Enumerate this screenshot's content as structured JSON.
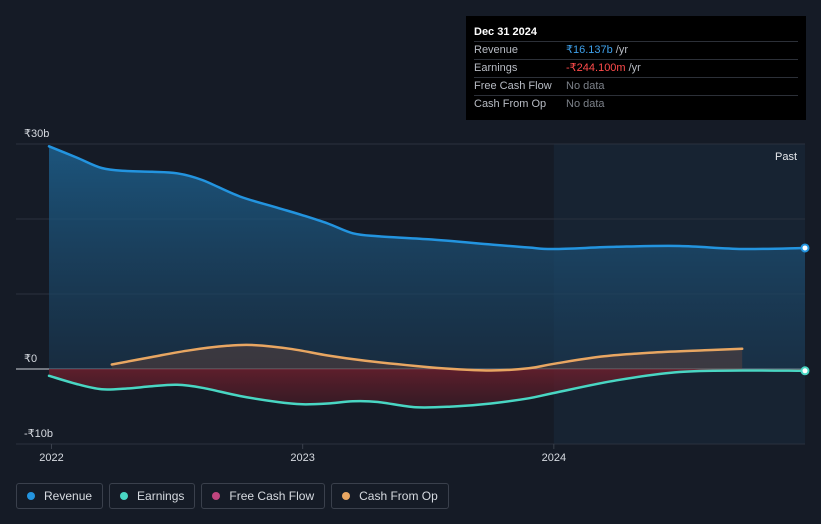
{
  "tooltip": {
    "date": "Dec 31 2024",
    "rows": [
      {
        "label": "Revenue",
        "value": "₹16.137b",
        "unit": "/yr",
        "color": "#3ea0ea"
      },
      {
        "label": "Earnings",
        "value": "-₹244.100m",
        "unit": "/yr",
        "color": "#ff4b4b"
      },
      {
        "label": "Free Cash Flow",
        "value": "No data",
        "unit": "",
        "color": "#7c8189"
      },
      {
        "label": "Cash From Op",
        "value": "No data",
        "unit": "",
        "color": "#7c8189"
      }
    ]
  },
  "legend": [
    {
      "label": "Revenue",
      "color": "#2394df"
    },
    {
      "label": "Earnings",
      "color": "#49d6c3"
    },
    {
      "label": "Free Cash Flow",
      "color": "#c0457e"
    },
    {
      "label": "Cash From Op",
      "color": "#e8a662"
    }
  ],
  "chart_data": {
    "type": "area",
    "title": "",
    "past_label": "Past",
    "y_unit": "₹b",
    "ylim": [
      -10,
      30
    ],
    "y_tick_labels": [
      {
        "value": 30,
        "label": "₹30b"
      },
      {
        "value": 0,
        "label": "₹0"
      },
      {
        "value": -10,
        "label": "-₹10b"
      }
    ],
    "y_gridlines": [
      30,
      20,
      10,
      0,
      -10
    ],
    "xlim": [
      2021.99,
      2025.0
    ],
    "x_tick_labels": [
      {
        "value": 2022,
        "label": "2022"
      },
      {
        "value": 2023,
        "label": "2023"
      },
      {
        "value": 2024,
        "label": "2024"
      }
    ],
    "highlight_start": 2024.0,
    "series": [
      {
        "name": "Revenue",
        "color": "#2394df",
        "x": [
          2021.99,
          2022.1,
          2022.2,
          2022.3,
          2022.4,
          2022.5,
          2022.6,
          2022.75,
          2022.9,
          2023.0,
          2023.1,
          2023.2,
          2023.3,
          2023.5,
          2023.75,
          2023.9,
          2024.0,
          2024.25,
          2024.5,
          2024.75,
          2025.0
        ],
        "y": [
          29.7,
          28.2,
          26.8,
          26.4,
          26.3,
          26.1,
          25.2,
          23.0,
          21.5,
          20.5,
          19.4,
          18.1,
          17.7,
          17.3,
          16.6,
          16.2,
          16.0,
          16.3,
          16.4,
          16.0,
          16.14
        ]
      },
      {
        "name": "Earnings",
        "color": "#49d6c3",
        "x": [
          2021.99,
          2022.1,
          2022.2,
          2022.3,
          2022.4,
          2022.5,
          2022.6,
          2022.75,
          2022.9,
          2023.0,
          2023.1,
          2023.2,
          2023.3,
          2023.45,
          2023.6,
          2023.75,
          2023.9,
          2024.0,
          2024.25,
          2024.5,
          2024.75,
          2025.0
        ],
        "y": [
          -0.9,
          -2.0,
          -2.7,
          -2.6,
          -2.3,
          -2.1,
          -2.5,
          -3.6,
          -4.4,
          -4.7,
          -4.6,
          -4.3,
          -4.4,
          -5.1,
          -5.0,
          -4.6,
          -3.9,
          -3.2,
          -1.5,
          -0.4,
          -0.2,
          -0.24
        ]
      },
      {
        "name": "Cash From Op",
        "color": "#e8a662",
        "x": [
          2022.24,
          2022.4,
          2022.55,
          2022.7,
          2022.8,
          2022.95,
          2023.1,
          2023.25,
          2023.45,
          2023.6,
          2023.75,
          2023.9,
          2024.0,
          2024.2,
          2024.4,
          2024.6,
          2024.75
        ],
        "y": [
          0.6,
          1.6,
          2.5,
          3.1,
          3.2,
          2.7,
          1.8,
          1.1,
          0.4,
          0.0,
          -0.2,
          0.1,
          0.7,
          1.7,
          2.2,
          2.5,
          2.7
        ]
      }
    ],
    "end_markers": [
      "Revenue",
      "Earnings"
    ]
  }
}
